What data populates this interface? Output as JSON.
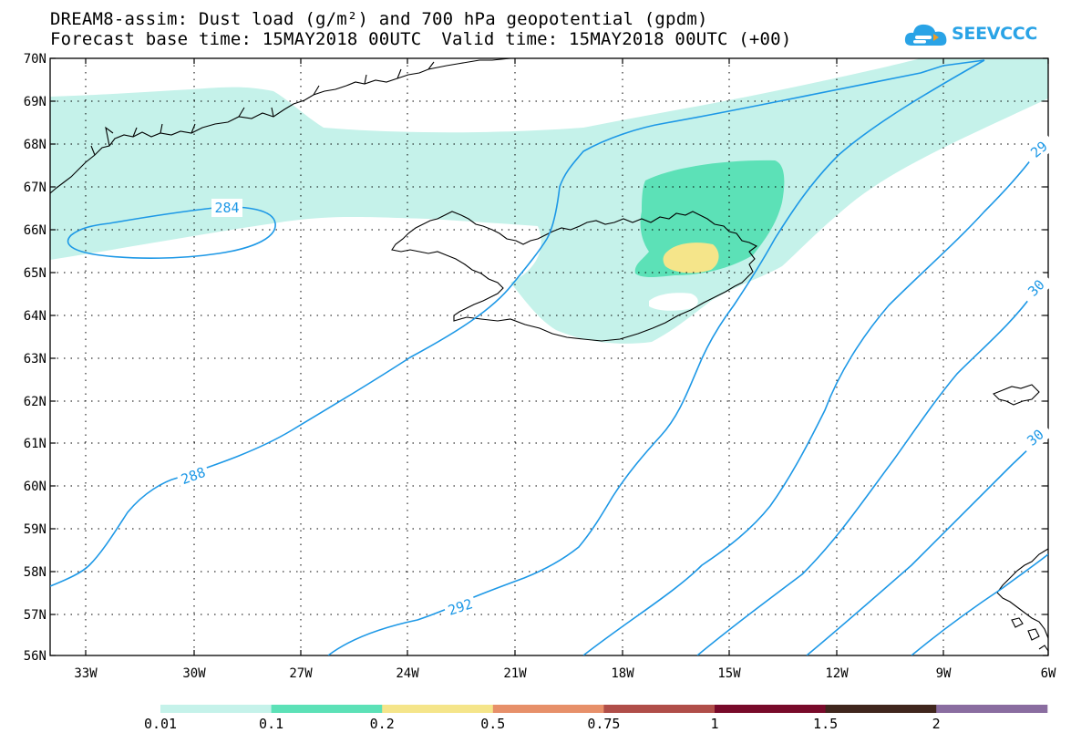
{
  "header": {
    "title": "DREAM8-assim: Dust load (g/m²) and 700 hPa geopotential (gpdm)",
    "base_time": "Forecast base time: 15MAY2018 00UTC",
    "valid_time": "Valid time: 15MAY2018 00UTC (+00)"
  },
  "logo": {
    "text": "SEEVCCC",
    "color": "#29a3e6"
  },
  "map": {
    "lat_labels": [
      "70N",
      "69N",
      "68N",
      "67N",
      "66N",
      "65N",
      "64N",
      "63N",
      "62N",
      "61N",
      "60N",
      "59N",
      "58N",
      "57N",
      "56N"
    ],
    "lon_labels": [
      "33W",
      "30W",
      "27W",
      "24W",
      "21W",
      "18W",
      "15W",
      "12W",
      "9W",
      "6W"
    ],
    "contour_labels": [
      {
        "text": "284"
      },
      {
        "text": "288"
      },
      {
        "text": "292"
      },
      {
        "text": "29"
      },
      {
        "text": "30"
      },
      {
        "text": "30"
      }
    ],
    "contour_color": "#1d98e6",
    "coast_color": "#000000"
  },
  "colorbar": {
    "labels": [
      "0.01",
      "0.1",
      "0.2",
      "0.5",
      "0.75",
      "1",
      "1.5",
      "2"
    ],
    "colors": [
      "#c5f2ea",
      "#5ce1b7",
      "#f5e58a",
      "#e7906a",
      "#b04e49",
      "#780a2a",
      "#40261d",
      "#8a6da0"
    ]
  }
}
